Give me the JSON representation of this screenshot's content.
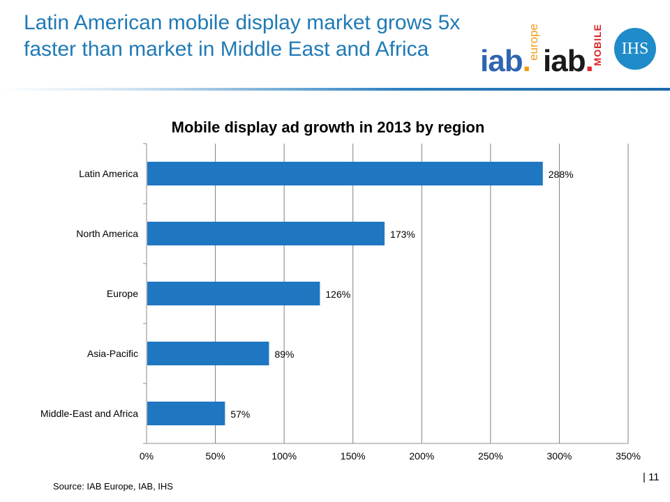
{
  "slide": {
    "title": "Latin American mobile display market grows 5x faster than market in Middle East and Africa",
    "source": "Source: IAB Europe, IAB, IHS",
    "page_number": "| 11"
  },
  "logos": {
    "iab_europe": {
      "text": "iab",
      "subtitle": "europe"
    },
    "iab_mobile": {
      "text": "iab",
      "subtitle": "MOBILE"
    },
    "ihs": {
      "text": "IHS"
    }
  },
  "colors": {
    "bar": "#1f77c1",
    "title": "#1f7ab5",
    "grid": "#7f7f7f"
  },
  "chart_data": {
    "type": "bar",
    "orientation": "horizontal",
    "title": "Mobile display ad growth in 2013 by region",
    "categories": [
      "Latin America",
      "North America",
      "Europe",
      "Asia-Pacific",
      "Middle-East and Africa"
    ],
    "values": [
      288,
      173,
      126,
      89,
      57
    ],
    "value_labels": [
      "288%",
      "173%",
      "126%",
      "89%",
      "57%"
    ],
    "xlim": [
      0,
      350
    ],
    "xticks": [
      0,
      50,
      100,
      150,
      200,
      250,
      300,
      350
    ],
    "xtick_labels": [
      "0%",
      "50%",
      "100%",
      "150%",
      "200%",
      "250%",
      "300%",
      "350%"
    ],
    "xlabel": "",
    "ylabel": "",
    "grid": true,
    "legend": false
  }
}
